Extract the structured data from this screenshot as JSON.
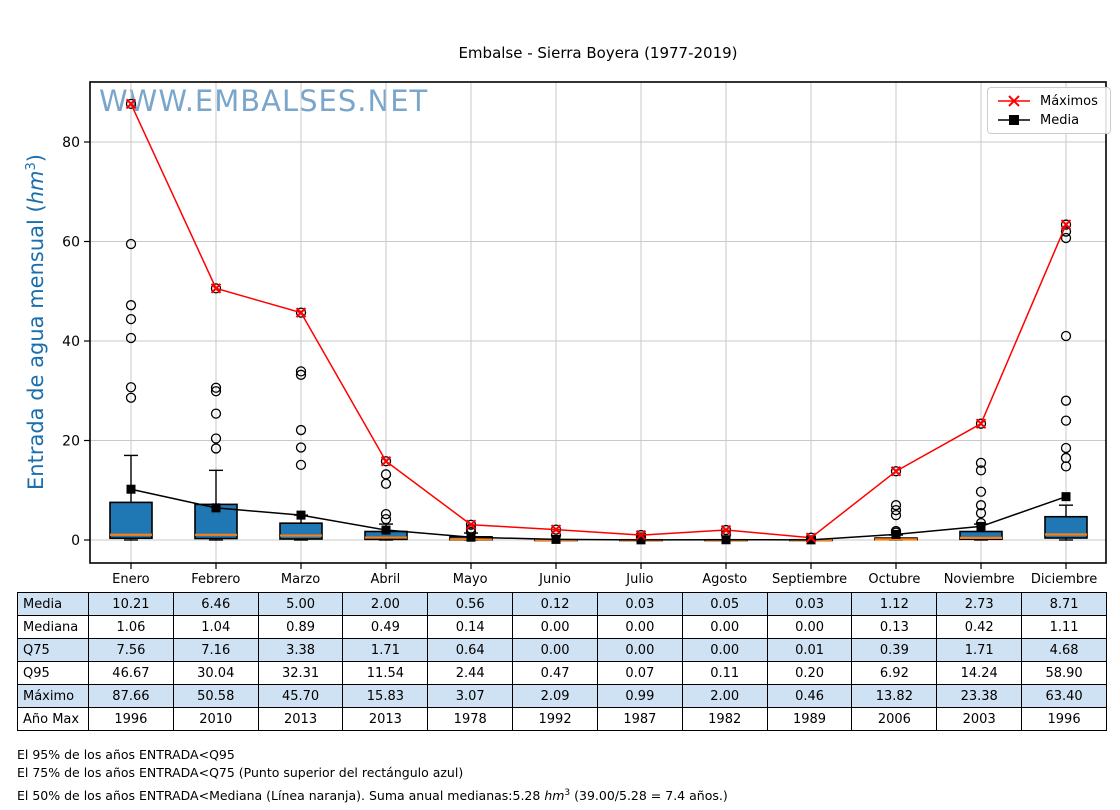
{
  "title": "Embalse - Sierra Boyera (1977-2019)",
  "watermark": "WWW.EMBALSES.NET",
  "y_axis": {
    "prefix": "Entrada de agua mensual (",
    "unit": "hm",
    "sup": "3",
    "suffix": ")"
  },
  "colors": {
    "box_fill": "#1f77b4",
    "median_line": "#ff7f0e",
    "maximos_line": "#ff0000",
    "media_line": "#000000",
    "ylabel_text": "#1b6fae",
    "watermark_text": "#7aa6cb",
    "table_shade": "#cfe2f3",
    "gridline": "#c9c9c9"
  },
  "chart_data": {
    "type": "boxplot",
    "title": "Embalse - Sierra Boyera (1977-2019)",
    "ylabel": "Entrada de agua mensual (hm³)",
    "xlabel": "",
    "grid": true,
    "legend_position": "upper right",
    "categories": [
      "Enero",
      "Febrero",
      "Marzo",
      "Abril",
      "Mayo",
      "Junio",
      "Julio",
      "Agosto",
      "Septiembre",
      "Octubre",
      "Noviembre",
      "Diciembre"
    ],
    "yticks": [
      0,
      20,
      40,
      60,
      80
    ],
    "ylim": [
      -4.6,
      92.1
    ],
    "series": [
      {
        "name": "Máximos",
        "marker": "x",
        "color": "#ff0000",
        "values": [
          87.66,
          50.58,
          45.7,
          15.83,
          3.07,
          2.09,
          0.99,
          2.0,
          0.46,
          13.82,
          23.38,
          63.4
        ]
      },
      {
        "name": "Media",
        "marker": "square",
        "color": "#000000",
        "values": [
          10.21,
          6.46,
          5.0,
          2.0,
          0.56,
          0.12,
          0.03,
          0.05,
          0.03,
          1.12,
          2.73,
          8.71
        ]
      }
    ],
    "boxes": {
      "median": [
        1.06,
        1.04,
        0.89,
        0.49,
        0.14,
        0.0,
        0.0,
        0.0,
        0.0,
        0.13,
        0.42,
        1.11
      ],
      "q1": [
        0.35,
        0.3,
        0.2,
        0.12,
        0.03,
        0.0,
        0.0,
        0.0,
        0.0,
        0.05,
        0.15,
        0.4
      ],
      "q3": [
        7.56,
        7.16,
        3.38,
        1.71,
        0.64,
        0.0,
        0.0,
        0.0,
        0.01,
        0.39,
        1.71,
        4.68
      ],
      "whisker_low": [
        0,
        0,
        0,
        0,
        0,
        0,
        0,
        0,
        0,
        0,
        0,
        0
      ],
      "whisker_high": [
        17.0,
        14.0,
        5.0,
        3.2,
        1.4,
        0.05,
        0.05,
        0.05,
        0.05,
        1.0,
        3.2,
        7.0
      ],
      "outliers": [
        [
          87.66,
          59.5,
          47.2,
          44.4,
          40.6,
          30.7,
          28.6
        ],
        [
          50.58,
          30.6,
          29.9,
          25.4,
          20.4,
          18.4
        ],
        [
          45.7,
          33.9,
          33.2,
          22.1,
          18.6,
          15.1
        ],
        [
          15.83,
          13.2,
          11.3,
          5.2,
          4.2
        ],
        [
          3.07,
          2.3,
          1.6
        ],
        [
          2.09,
          1.0
        ],
        [
          0.99,
          0.5
        ],
        [
          2.0,
          1.1
        ],
        [
          0.46
        ],
        [
          13.82,
          7.0,
          6.0,
          5.0,
          1.8,
          1.5
        ],
        [
          23.38,
          15.5,
          14.0,
          9.7,
          7.0,
          5.4,
          3.4
        ],
        [
          63.4,
          62.0,
          60.7,
          41.0,
          28.0,
          24.0,
          18.5,
          16.5,
          14.8
        ]
      ]
    },
    "q95": [
      46.67,
      30.04,
      32.31,
      11.54,
      2.44,
      0.47,
      0.07,
      0.11,
      0.2,
      6.92,
      14.24,
      58.9
    ]
  },
  "table": {
    "row_labels": [
      "Media",
      "Mediana",
      "Q75",
      "Q95",
      "Máximo",
      "Año Max"
    ],
    "rows": [
      [
        "10.21",
        "6.46",
        "5.00",
        "2.00",
        "0.56",
        "0.12",
        "0.03",
        "0.05",
        "0.03",
        "1.12",
        "2.73",
        "8.71"
      ],
      [
        "1.06",
        "1.04",
        "0.89",
        "0.49",
        "0.14",
        "0.00",
        "0.00",
        "0.00",
        "0.00",
        "0.13",
        "0.42",
        "1.11"
      ],
      [
        "7.56",
        "7.16",
        "3.38",
        "1.71",
        "0.64",
        "0.00",
        "0.00",
        "0.00",
        "0.01",
        "0.39",
        "1.71",
        "4.68"
      ],
      [
        "46.67",
        "30.04",
        "32.31",
        "11.54",
        "2.44",
        "0.47",
        "0.07",
        "0.11",
        "0.20",
        "6.92",
        "14.24",
        "58.90"
      ],
      [
        "87.66",
        "50.58",
        "45.70",
        "15.83",
        "3.07",
        "2.09",
        "0.99",
        "2.00",
        "0.46",
        "13.82",
        "23.38",
        "63.40"
      ],
      [
        "1996",
        "2010",
        "2013",
        "2013",
        "1978",
        "1992",
        "1987",
        "1982",
        "1989",
        "2006",
        "2003",
        "1996"
      ]
    ]
  },
  "footer": {
    "line1": "El 95% de los años ENTRADA<Q95",
    "line2": "El 75% de los años ENTRADA<Q75 (Punto superior del rectángulo azul)",
    "line3_prefix": " El 50% de los años ENTRADA<Mediana (Línea naranja). Suma anual medianas:5.28 ",
    "line3_unit": "hm",
    "line3_sup": "3",
    "line3_suffix": " (39.00/5.28 = 7.4 años.)"
  }
}
